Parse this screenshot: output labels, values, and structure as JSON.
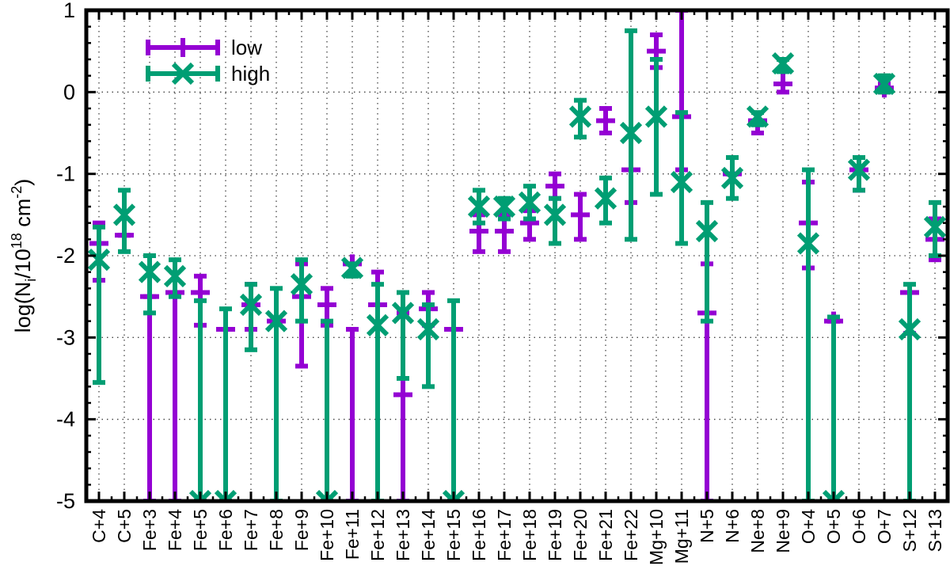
{
  "chart_data": {
    "type": "scatter",
    "ylabel_parts": [
      "log(N",
      "i",
      "/10",
      "18",
      " cm",
      "-2",
      ")"
    ],
    "ylim": [
      -5,
      1
    ],
    "yticks": [
      1,
      0,
      -1,
      -2,
      -3,
      -4,
      -5
    ],
    "ytick_labels": [
      "1",
      "0",
      "-1",
      "-2",
      "-3",
      "-4",
      "-5"
    ],
    "grid": true,
    "legend_position": "top-left",
    "categories": [
      "C+4",
      "C+5",
      "Fe+3",
      "Fe+4",
      "Fe+5",
      "Fe+6",
      "Fe+7",
      "Fe+8",
      "Fe+9",
      "Fe+10",
      "Fe+11",
      "Fe+12",
      "Fe+13",
      "Fe+14",
      "Fe+15",
      "Fe+16",
      "Fe+17",
      "Fe+18",
      "Fe+19",
      "Fe+20",
      "Fe+21",
      "Fe+22",
      "Mg+10",
      "Mg+11",
      "N+5",
      "N+6",
      "Ne+8",
      "Ne+9",
      "O+4",
      "O+5",
      "O+6",
      "O+7",
      "S+12",
      "S+13"
    ],
    "series": [
      {
        "name": "low",
        "color": "#9400d3",
        "marker": "plus",
        "points": [
          [
            -1.85,
            -2.3,
            -1.6
          ],
          [
            -1.75,
            -1.75,
            -1.75
          ],
          [
            -2.5,
            -5,
            -2.5
          ],
          [
            -2.45,
            -5,
            -2.45
          ],
          [
            -2.45,
            -2.85,
            -2.25
          ],
          [
            -2.9,
            -2.9,
            -2.9
          ],
          [
            -2.6,
            -2.9,
            -2.35
          ],
          [
            -2.8,
            -2.8,
            -2.8
          ],
          [
            -2.5,
            -3.35,
            -2.1
          ],
          [
            -2.6,
            -2.85,
            -2.4
          ],
          [
            -2.1,
            -5,
            -2.9
          ],
          [
            -2.6,
            -2.6,
            -2.2
          ],
          [
            -3.7,
            -5,
            -2.7
          ],
          [
            -2.65,
            -2.85,
            -2.45
          ],
          [
            -2.9,
            -2.9,
            -2.9
          ],
          [
            -1.7,
            -1.95,
            -1.5
          ],
          [
            -1.7,
            -1.95,
            -1.5
          ],
          [
            -1.6,
            -1.8,
            -1.45
          ],
          [
            -1.15,
            -1.3,
            -1.0
          ],
          [
            -1.5,
            -1.8,
            -1.25
          ],
          [
            -0.35,
            -0.5,
            -0.2
          ],
          [
            -0.95,
            -1.35,
            -0.95
          ],
          [
            0.5,
            0.3,
            0.7
          ],
          [
            -0.3,
            -0.95,
            1.0
          ],
          [
            -2.7,
            -5,
            -2.1
          ],
          [
            -1.0,
            -1.0,
            -1.0
          ],
          [
            -0.35,
            -0.5,
            -0.35
          ],
          [
            0.1,
            0.0,
            0.25
          ],
          [
            -1.6,
            -2.15,
            -1.1
          ],
          [
            -2.8,
            -2.8,
            -2.8
          ],
          [
            -0.95,
            -1.2,
            -0.95
          ],
          [
            0.05,
            0.0,
            0.1
          ],
          [
            -2.45,
            -2.95,
            -2.45
          ],
          [
            -1.8,
            -2.05,
            -1.55
          ]
        ]
      },
      {
        "name": "high",
        "color": "#009e73",
        "marker": "cross",
        "points": [
          [
            -2.05,
            -3.55,
            -1.65
          ],
          [
            -1.5,
            -1.95,
            -1.2
          ],
          [
            -2.2,
            -2.7,
            -2.0
          ],
          [
            -2.25,
            -2.5,
            -2.05
          ],
          [
            -5,
            -5,
            -2.55
          ],
          [
            -5,
            -5,
            -2.65
          ],
          [
            -2.6,
            -3.15,
            -2.35
          ],
          [
            -2.8,
            -5,
            -2.4
          ],
          [
            -2.35,
            -2.8,
            -2.05
          ],
          [
            -5,
            -5,
            -2.8
          ],
          [
            -2.15,
            -2.25,
            -2.1
          ],
          [
            -2.85,
            -5,
            -2.35
          ],
          [
            -2.7,
            -3.5,
            -2.45
          ],
          [
            -2.9,
            -3.6,
            -2.6
          ],
          [
            -5,
            -5,
            -2.55
          ],
          [
            -1.4,
            -1.6,
            -1.2
          ],
          [
            -1.4,
            -1.55,
            -1.3
          ],
          [
            -1.35,
            -1.55,
            -1.15
          ],
          [
            -1.5,
            -1.85,
            -1.3
          ],
          [
            -0.3,
            -0.55,
            -0.1
          ],
          [
            -1.3,
            -1.6,
            -1.05
          ],
          [
            -0.5,
            -1.8,
            0.75
          ],
          [
            -0.3,
            -1.25,
            0.4
          ],
          [
            -1.1,
            -1.85,
            -0.25
          ],
          [
            -1.7,
            -2.8,
            -1.35
          ],
          [
            -1.05,
            -1.3,
            -0.8
          ],
          [
            -0.3,
            -0.4,
            -0.25
          ],
          [
            0.35,
            0.25,
            0.4
          ],
          [
            -1.85,
            -5,
            -0.95
          ],
          [
            -5,
            -5,
            -2.75
          ],
          [
            -0.95,
            -1.2,
            -0.8
          ],
          [
            0.1,
            0.0,
            0.2
          ],
          [
            -2.9,
            -5,
            -2.35
          ],
          [
            -1.65,
            -2.0,
            -1.35
          ]
        ]
      }
    ]
  }
}
